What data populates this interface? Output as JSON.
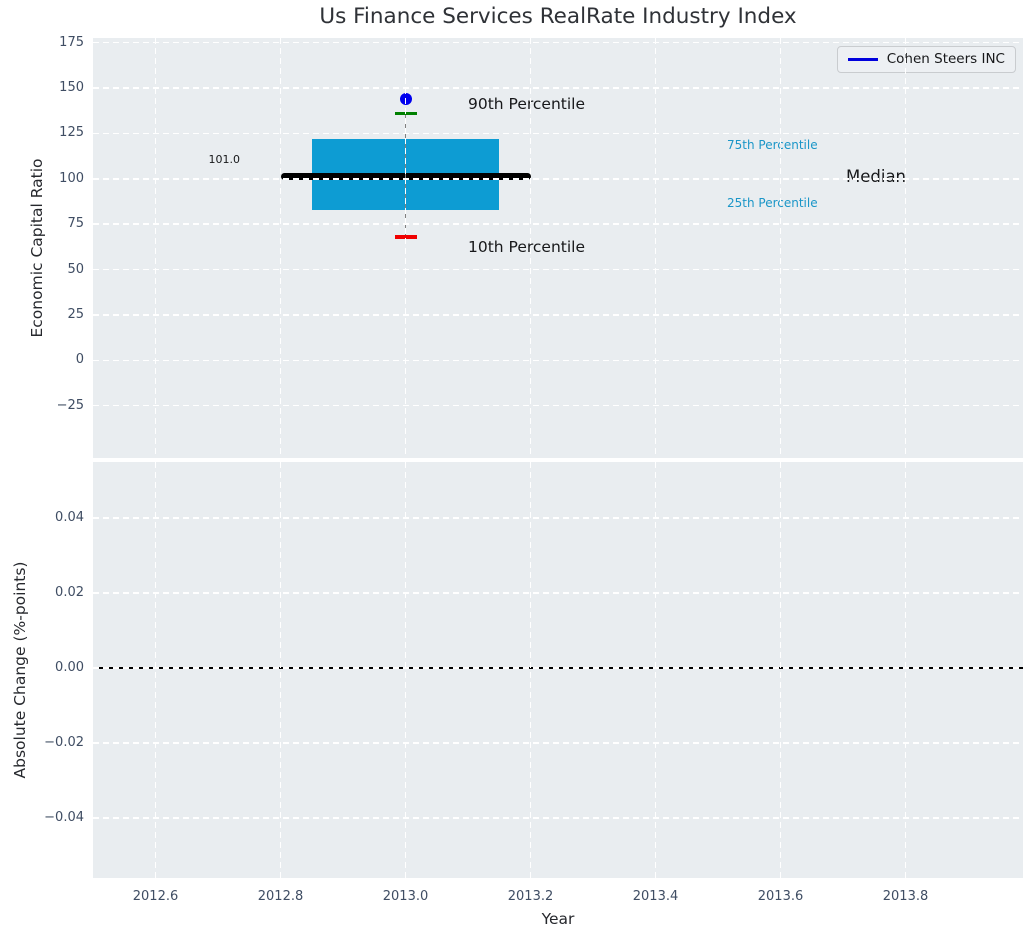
{
  "title": "Us Finance Services RealRate Industry Index",
  "chart_data": [
    {
      "type": "box",
      "title": "Us Finance Services RealRate Industry Index",
      "ylabel": "Economic Capital Ratio",
      "x_center": 2013.0,
      "median": 101.0,
      "q25": 83,
      "q75": 122,
      "p10": 68,
      "p90": 136,
      "company_value": 144,
      "box_x_range": [
        2012.85,
        2013.15
      ],
      "median_x_range": [
        2012.8,
        2013.2
      ],
      "yticks": [
        175,
        150,
        125,
        100,
        75,
        50,
        25,
        0,
        -25
      ],
      "ylim": [
        -50,
        177.5
      ],
      "grid": true,
      "legend_position": "upper right",
      "legend": [
        "Cohen Steers INC"
      ],
      "labels": {
        "p90": "90th Percentile",
        "p10": "10th Percentile",
        "p75": "75th Percentile",
        "p25": "25th Percentile",
        "median": "Median",
        "median_value": "101.0"
      },
      "colors": {
        "box": "#0d9cd3",
        "median_line": "#000000",
        "whisker": "#808080",
        "p90_cap": "#008000",
        "p10_cap": "#f00000",
        "company_point": "#0000ee",
        "percentile_text": "#1b96c8",
        "legend_line": "#0000dd",
        "axes_background": "#e9edf0",
        "gridline": "#ffffff",
        "tick_text": "#3f4d63"
      }
    },
    {
      "type": "line",
      "ylabel": "Absolute Change (%-points)",
      "xlabel": "Year",
      "yticks": [
        0.04,
        0.02,
        0,
        -0.02,
        -0.04
      ],
      "xticks": [
        2012.6,
        2012.8,
        2013.0,
        2013.2,
        2013.4,
        2013.6,
        2013.8
      ],
      "xlim": [
        2012.5,
        2013.99
      ],
      "ylim": [
        -0.055,
        0.055
      ],
      "hline": 0.0,
      "hline_color": "#000000",
      "series": [],
      "grid": true
    }
  ]
}
